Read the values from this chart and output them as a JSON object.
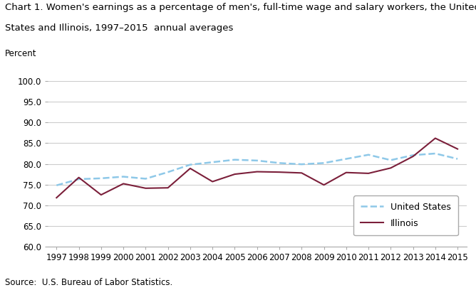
{
  "years": [
    1997,
    1998,
    1999,
    2000,
    2001,
    2002,
    2003,
    2004,
    2005,
    2006,
    2007,
    2008,
    2009,
    2010,
    2011,
    2012,
    2013,
    2014,
    2015
  ],
  "us_values": [
    74.8,
    76.3,
    76.5,
    76.9,
    76.4,
    78.0,
    79.8,
    80.4,
    81.0,
    80.8,
    80.2,
    79.9,
    80.2,
    81.2,
    82.2,
    80.9,
    82.1,
    82.5,
    81.2
  ],
  "il_values": [
    71.8,
    76.7,
    72.5,
    75.2,
    74.1,
    74.2,
    78.9,
    75.7,
    77.5,
    78.1,
    78.0,
    77.8,
    74.9,
    77.9,
    77.7,
    79.0,
    81.8,
    86.2,
    83.6
  ],
  "us_color": "#8EC8E8",
  "il_color": "#7B1F3A",
  "us_label": "United States",
  "il_label": "Illinois",
  "title_line1": "Chart 1. Women's earnings as a percentage of men's, full-time wage and salary workers, the United",
  "title_line2": "States and Illinois, 1997–2015  annual averages",
  "ylabel": "Percent",
  "source": "Source:  U.S. Bureau of Labor Statistics.",
  "ylim": [
    60.0,
    100.0
  ],
  "yticks": [
    60.0,
    65.0,
    70.0,
    75.0,
    80.0,
    85.0,
    90.0,
    95.0,
    100.0
  ],
  "background_color": "#ffffff",
  "grid_color": "#cccccc",
  "title_fontsize": 9.5,
  "label_fontsize": 8.5,
  "tick_fontsize": 8.5,
  "legend_fontsize": 9,
  "source_fontsize": 8.5
}
